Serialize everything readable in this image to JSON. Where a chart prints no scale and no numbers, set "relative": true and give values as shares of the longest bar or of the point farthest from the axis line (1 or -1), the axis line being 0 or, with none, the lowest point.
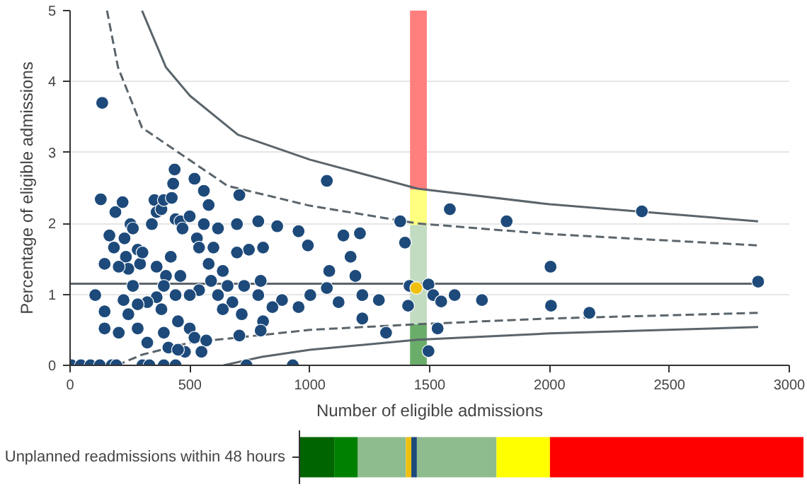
{
  "chart_data": [
    {
      "type": "scatter",
      "xlabel": "Number of eligible admissions",
      "ylabel": "Percentage of eligible admissions",
      "xlim": [
        0,
        3000
      ],
      "ylim": [
        0,
        5
      ],
      "xticks": [
        0,
        500,
        1000,
        1500,
        2000,
        2500,
        3000
      ],
      "yticks": [
        0,
        1,
        2,
        3,
        4,
        5
      ],
      "grid": "y",
      "stacked": true,
      "series": [
        {
          "type": "bar",
          "color": "#6aad6a",
          "x": [
            1453
          ],
          "values": [
            0.58
          ]
        },
        {
          "type": "bar",
          "color": "#c2dcc2",
          "x": [
            1453
          ],
          "values": [
            1.4
          ]
        },
        {
          "type": "bar",
          "color": "#ffff80",
          "x": [
            1453
          ],
          "values": [
            0.5
          ]
        },
        {
          "type": "bar",
          "color": "#ff7f7f",
          "x": [
            1453
          ],
          "values": [
            2.52
          ]
        },
        {
          "type": "line",
          "color": "#5a646b",
          "line_style": "solid",
          "x": [
            300,
            400,
            500,
            700,
            1000,
            1450,
            2000,
            2870
          ],
          "values": [
            5.0,
            4.2,
            3.8,
            3.25,
            2.9,
            2.49,
            2.27,
            2.03
          ]
        },
        {
          "type": "line",
          "color": "#5a646b",
          "line_style": "dashed",
          "x": [
            154,
            200,
            300,
            657,
            1000,
            1450,
            2000,
            2870
          ],
          "values": [
            5.0,
            4.2,
            3.35,
            2.53,
            2.25,
            2.0,
            1.85,
            1.69
          ]
        },
        {
          "type": "line",
          "color": "#5a646b",
          "line_style": "solid",
          "x": [
            0,
            2870
          ],
          "values": [
            1.15,
            1.15
          ]
        },
        {
          "type": "line",
          "color": "#5a646b",
          "line_style": "dashed",
          "x": [
            195,
            300,
            500,
            1000,
            1450,
            2000,
            2870
          ],
          "values": [
            0,
            0.15,
            0.32,
            0.5,
            0.58,
            0.66,
            0.74
          ]
        },
        {
          "type": "line",
          "color": "#5a646b",
          "line_style": "solid",
          "x": [
            640,
            800,
            1000,
            1450,
            2000,
            2870
          ],
          "values": [
            0,
            0.12,
            0.22,
            0.36,
            0.45,
            0.54
          ]
        },
        {
          "color": "#1d4a7a",
          "marker": "circle",
          "x": [
            134,
            128,
            144,
            164,
            183,
            189,
            219,
            227,
            252,
            262,
            233,
            243,
            282,
            292,
            302,
            352,
            361,
            341,
            381,
            391,
            424,
            436,
            430,
            440,
            460,
            469,
            499,
            519,
            529,
            558,
            578,
            558,
            617,
            598,
            538,
            706,
            696,
            785,
            746,
            696,
            805,
            864,
            953,
            992,
            1071,
            1140,
            1209,
            1170,
            1190,
            1219,
            1081,
            1071,
            1120,
            1288,
            1318,
            1377,
            1397,
            1410,
            1416,
            1219,
            1002,
            953,
            884,
            844,
            795,
            805,
            795,
            785,
            726,
            716,
            706,
            736,
            929,
            677,
            637,
            617,
            588,
            578,
            637,
            657,
            538,
            499,
            499,
            519,
            568,
            548,
            479,
            450,
            440,
            460,
            400,
            361,
            420,
            391,
            361,
            322,
            282,
            223,
            243,
            282,
            322,
            203,
            144,
            105,
            144,
            262,
            203,
            381,
            391,
            410,
            450,
            6,
            45,
            85,
            124,
            174,
            193,
            302,
            331,
            391,
            440,
            1584,
            1821,
            2385,
            2004,
            2870,
            1495,
            1515,
            1548,
            1604,
            1718,
            2006,
            2166,
            1533,
            1495
          ],
          "values": [
            3.7,
            2.34,
            1.43,
            1.83,
            1.66,
            2.16,
            2.3,
            1.79,
            1.99,
            1.93,
            1.53,
            1.36,
            1.63,
            1.43,
            1.59,
            2.33,
            2.16,
            1.99,
            2.2,
            2.33,
            2.36,
            2.76,
            2.56,
            2.06,
            2.03,
            1.93,
            2.1,
            2.63,
            1.79,
            2.46,
            2.26,
            1.99,
            1.93,
            1.66,
            1.66,
            2.4,
            1.99,
            2.03,
            1.63,
            1.59,
            1.66,
            1.96,
            1.89,
            1.69,
            2.6,
            1.83,
            1.86,
            1.53,
            1.26,
            0.99,
            1.33,
            1.09,
            0.89,
            0.92,
            0.46,
            2.03,
            1.73,
            0.84,
            1.12,
            0.66,
            0.99,
            0.82,
            0.92,
            0.82,
            1.19,
            0.62,
            0.49,
            0.99,
            1.12,
            0.72,
            0.42,
            0,
            0,
            0.89,
            0.79,
            0.99,
            1.19,
            1.43,
            1.33,
            1.12,
            1.06,
            0.99,
            0.52,
            0.39,
            0.35,
            0.19,
            0.19,
            0.62,
            0.99,
            1.26,
            1.26,
            1.39,
            1.53,
            1.12,
            0.96,
            0.89,
            0.86,
            0.92,
            0.72,
            0.52,
            0.32,
            0.46,
            0.76,
            0.99,
            0.52,
            1.12,
            1.39,
            0.79,
            0.46,
            0.25,
            0.22,
            0,
            0,
            0,
            0,
            0,
            0,
            0,
            0,
            0,
            0,
            2.2,
            2.03,
            2.17,
            1.39,
            1.18,
            1.14,
            0.99,
            0.9,
            0.99,
            0.92,
            0.84,
            0.74,
            0.52,
            0.2
          ]
        },
        {
          "color": "#f0c010",
          "marker": "circle",
          "x": [
            1444
          ],
          "values": [
            1.09
          ]
        }
      ]
    },
    {
      "type": "bar",
      "orientation": "horizontal",
      "stacked": true,
      "relative": true,
      "categories": [
        "Unplanned readmissions within 48 hours"
      ],
      "series": [
        {
          "color": "#006400",
          "values": [
            0.069
          ]
        },
        {
          "color": "#008000",
          "values": [
            0.047
          ]
        },
        {
          "color": "#8fbc8f",
          "values": [
            0.095
          ]
        },
        {
          "color": "#f0c010",
          "values": [
            0.011
          ]
        },
        {
          "color": "#1d4a7a",
          "values": [
            0.011
          ]
        },
        {
          "color": "#8fbc8f",
          "values": [
            0.158
          ]
        },
        {
          "color": "#ffff00",
          "values": [
            0.106
          ]
        },
        {
          "color": "#ff0000",
          "values": [
            0.503
          ]
        }
      ]
    }
  ]
}
